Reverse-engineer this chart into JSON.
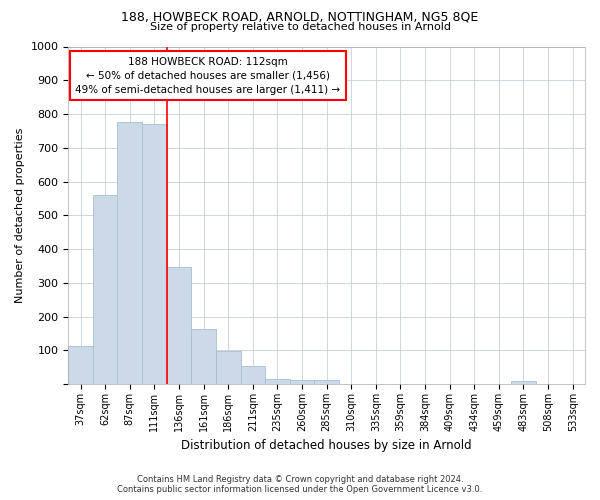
{
  "title1": "188, HOWBECK ROAD, ARNOLD, NOTTINGHAM, NG5 8QE",
  "title2": "Size of property relative to detached houses in Arnold",
  "xlabel": "Distribution of detached houses by size in Arnold",
  "ylabel": "Number of detached properties",
  "bar_color": "#ccd9e8",
  "bar_edge_color": "#a8bfcf",
  "categories": [
    "37sqm",
    "62sqm",
    "87sqm",
    "111sqm",
    "136sqm",
    "161sqm",
    "186sqm",
    "211sqm",
    "235sqm",
    "260sqm",
    "285sqm",
    "310sqm",
    "335sqm",
    "359sqm",
    "384sqm",
    "409sqm",
    "434sqm",
    "459sqm",
    "483sqm",
    "508sqm",
    "533sqm"
  ],
  "values": [
    113,
    560,
    775,
    770,
    347,
    163,
    97,
    53,
    14,
    13,
    11,
    0,
    0,
    0,
    0,
    0,
    0,
    0,
    8,
    0,
    0
  ],
  "property_bin_index": 3,
  "annotation_title": "188 HOWBECK ROAD: 112sqm",
  "annotation_line1": "← 50% of detached houses are smaller (1,456)",
  "annotation_line2": "49% of semi-detached houses are larger (1,411) →",
  "ylim": [
    0,
    1000
  ],
  "yticks": [
    0,
    100,
    200,
    300,
    400,
    500,
    600,
    700,
    800,
    900,
    1000
  ],
  "footer1": "Contains HM Land Registry data © Crown copyright and database right 2024.",
  "footer2": "Contains public sector information licensed under the Open Government Licence v3.0."
}
